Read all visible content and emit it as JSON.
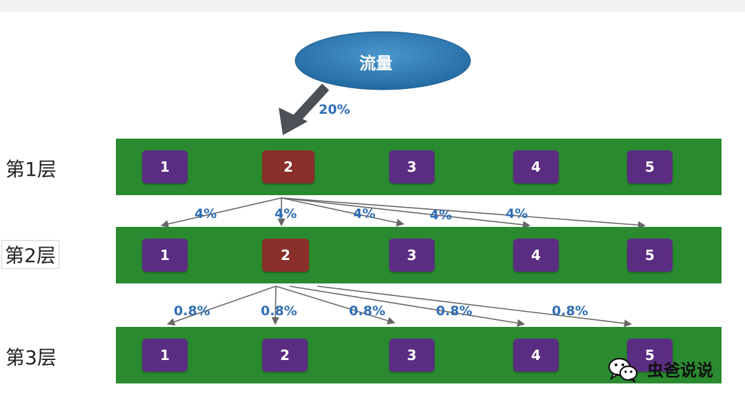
{
  "source": {
    "label": "流量"
  },
  "entry_pct": "20%",
  "layers": [
    {
      "label": "第1层",
      "cells": [
        "1",
        "2",
        "3",
        "4",
        "5"
      ]
    },
    {
      "label": "第2层",
      "cells": [
        "1",
        "2",
        "3",
        "4",
        "5"
      ]
    },
    {
      "label": "第3层",
      "cells": [
        "1",
        "2",
        "3",
        "4",
        "5"
      ]
    }
  ],
  "pct_row1": [
    "4%",
    "4%",
    "4%",
    "4%",
    "4%"
  ],
  "pct_row2": [
    "0.8%",
    "0.8%",
    "0.8%",
    "0.8%",
    "0.8%"
  ],
  "watermark": {
    "text": "虫爸说说",
    "icon": "wechat-icon"
  },
  "colors": {
    "layer": "#2a8a2f",
    "cell": "#5b2d82",
    "selected": "#8a2f2a",
    "source": "#2f7bb5",
    "pct": "#2f6eb5"
  }
}
